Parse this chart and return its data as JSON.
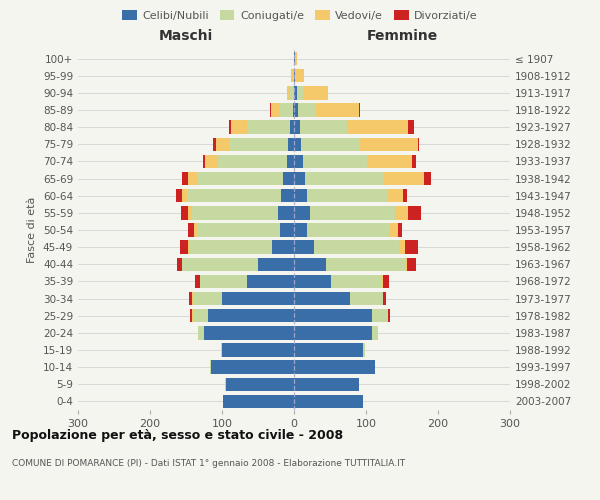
{
  "age_groups": [
    "100+",
    "95-99",
    "90-94",
    "85-89",
    "80-84",
    "75-79",
    "70-74",
    "65-69",
    "60-64",
    "55-59",
    "50-54",
    "45-49",
    "40-44",
    "35-39",
    "30-34",
    "25-29",
    "20-24",
    "15-19",
    "10-14",
    "5-9",
    "0-4"
  ],
  "birth_years": [
    "≤ 1907",
    "1908-1912",
    "1913-1917",
    "1918-1922",
    "1923-1927",
    "1928-1932",
    "1933-1937",
    "1938-1942",
    "1943-1947",
    "1948-1952",
    "1953-1957",
    "1958-1962",
    "1963-1967",
    "1968-1972",
    "1973-1977",
    "1978-1982",
    "1983-1987",
    "1988-1992",
    "1993-1997",
    "1998-2002",
    "2003-2007"
  ],
  "maschi": {
    "celibe": [
      0,
      0,
      0,
      2,
      5,
      9,
      10,
      15,
      18,
      22,
      20,
      30,
      50,
      65,
      100,
      120,
      125,
      100,
      115,
      95,
      98
    ],
    "coniugato": [
      0,
      2,
      5,
      18,
      60,
      80,
      95,
      120,
      130,
      120,
      115,
      115,
      105,
      65,
      40,
      20,
      8,
      2,
      2,
      1,
      0
    ],
    "vedovo": [
      0,
      2,
      5,
      12,
      22,
      20,
      18,
      12,
      8,
      5,
      4,
      2,
      1,
      1,
      1,
      2,
      0,
      0,
      0,
      0,
      0
    ],
    "divorziato": [
      0,
      0,
      0,
      2,
      3,
      3,
      3,
      8,
      8,
      10,
      8,
      12,
      6,
      6,
      5,
      3,
      0,
      0,
      0,
      0,
      0
    ]
  },
  "femmine": {
    "nubile": [
      2,
      2,
      4,
      5,
      8,
      10,
      12,
      15,
      18,
      22,
      18,
      28,
      45,
      52,
      78,
      108,
      108,
      96,
      112,
      90,
      96
    ],
    "coniugata": [
      0,
      0,
      8,
      25,
      65,
      80,
      90,
      110,
      112,
      118,
      115,
      118,
      110,
      70,
      45,
      22,
      8,
      2,
      1,
      0,
      0
    ],
    "vedova": [
      2,
      12,
      35,
      60,
      85,
      82,
      62,
      55,
      22,
      18,
      12,
      8,
      2,
      2,
      1,
      1,
      0,
      0,
      0,
      0,
      0
    ],
    "divorziata": [
      0,
      0,
      0,
      2,
      8,
      2,
      5,
      10,
      5,
      18,
      5,
      18,
      12,
      8,
      4,
      2,
      0,
      0,
      0,
      0,
      0
    ]
  },
  "colors": {
    "celibe": "#3a6ea8",
    "coniugato": "#c5d9a0",
    "vedovo": "#f5c96a",
    "divorziato": "#cc2222"
  },
  "xlim": 300,
  "title": "Popolazione per età, sesso e stato civile - 2008",
  "subtitle": "COMUNE DI POMARANCE (PI) - Dati ISTAT 1° gennaio 2008 - Elaborazione TUTTITALIA.IT",
  "ylabel_left": "Fasce di età",
  "xlabel_left": "Maschi",
  "xlabel_right": "Femmine",
  "bg_color": "#f5f5f0",
  "legend_labels": [
    "Celibi/Nubili",
    "Coniugati/e",
    "Vedovi/e",
    "Divorziati/e"
  ]
}
